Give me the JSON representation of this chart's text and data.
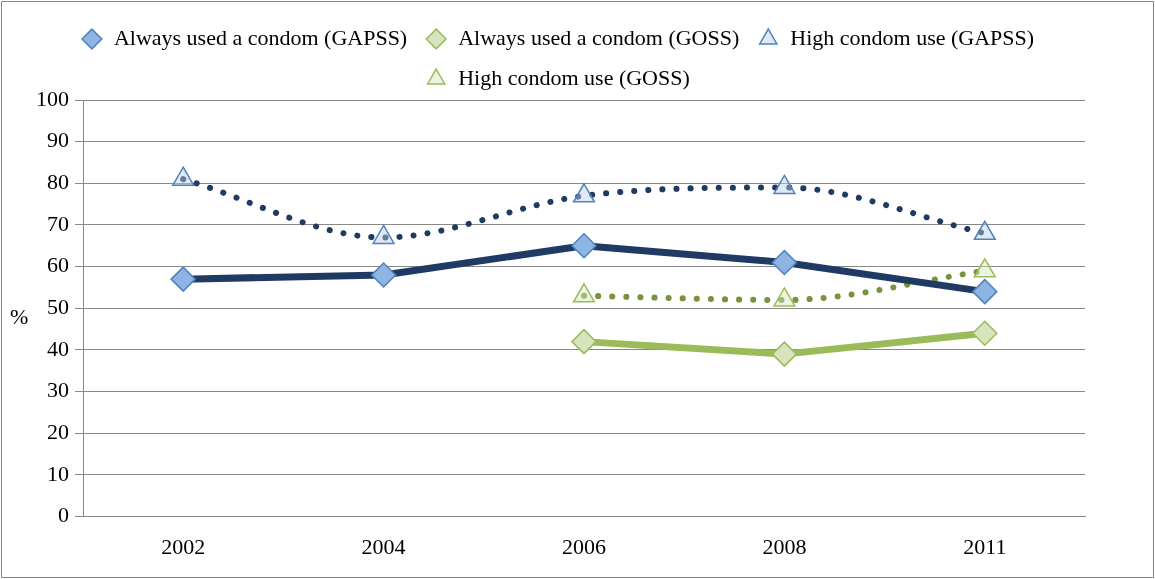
{
  "chart_data": {
    "type": "line",
    "ylabel": "%",
    "categories": [
      "2002",
      "2004",
      "2006",
      "2008",
      "2011"
    ],
    "series": [
      {
        "name": "Always used a condom (GAPSS)",
        "color": "#1f3b63",
        "marker": "diamond",
        "line_style": "solid",
        "values": [
          57,
          58,
          65,
          61,
          54
        ]
      },
      {
        "name": "Always used a condom (GOSS)",
        "color": "#9bbb59",
        "marker": "diamond",
        "line_style": "solid",
        "values": [
          null,
          null,
          42,
          39,
          44
        ]
      },
      {
        "name": "High condom use (GAPSS)",
        "color": "#1f3b63",
        "marker": "triangle",
        "line_style": "dotted",
        "values": [
          81,
          67,
          77,
          79,
          68
        ]
      },
      {
        "name": "High condom use (GOSS)",
        "color": "#77933c",
        "marker": "triangle",
        "line_style": "dotted",
        "values": [
          null,
          null,
          53,
          52,
          59
        ]
      }
    ],
    "ylim": [
      0,
      100
    ],
    "yticks": [
      0,
      10,
      20,
      30,
      40,
      50,
      60,
      70,
      80,
      90,
      100
    ],
    "grid": "y",
    "legend": "top"
  }
}
